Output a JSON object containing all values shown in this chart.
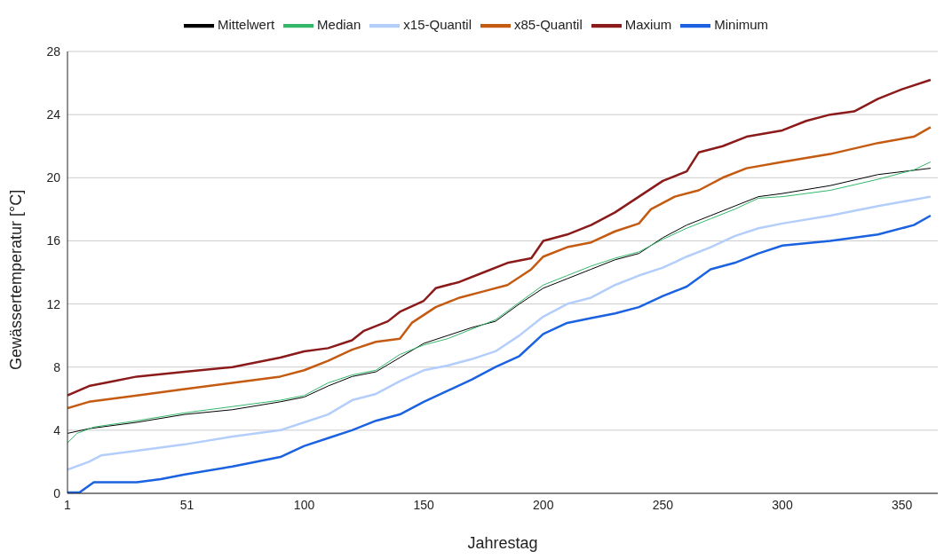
{
  "chart_data": {
    "type": "line",
    "xlabel": "Jahrestag",
    "ylabel": "Gewässertemperatur [°C]",
    "xlim": [
      1,
      365
    ],
    "xticks": [
      1,
      51,
      100,
      150,
      200,
      250,
      300,
      350
    ],
    "ylim": [
      0,
      28
    ],
    "yticks": [
      0,
      4,
      8,
      12,
      16,
      20,
      24,
      28
    ],
    "grid": "y",
    "legend": "top",
    "marker": "none",
    "line_style": "solid",
    "series": [
      {
        "name": "Mittelwert",
        "color": "#000000",
        "x": [
          1,
          10,
          30,
          50,
          70,
          90,
          100,
          110,
          120,
          130,
          140,
          150,
          160,
          170,
          180,
          190,
          200,
          210,
          220,
          230,
          240,
          250,
          260,
          270,
          280,
          290,
          300,
          320,
          340,
          362
        ],
        "values": [
          3.8,
          4.1,
          4.5,
          5.0,
          5.3,
          5.8,
          6.1,
          6.8,
          7.4,
          7.7,
          8.6,
          9.5,
          10.0,
          10.5,
          10.9,
          12.0,
          13.0,
          13.6,
          14.2,
          14.8,
          15.2,
          16.2,
          17.0,
          17.6,
          18.2,
          18.8,
          19.0,
          19.5,
          20.2,
          20.6
        ]
      },
      {
        "name": "Median",
        "color": "#33b86a",
        "x": [
          1,
          5,
          12,
          30,
          50,
          70,
          90,
          100,
          110,
          120,
          130,
          140,
          150,
          160,
          170,
          180,
          190,
          200,
          210,
          220,
          230,
          240,
          250,
          260,
          270,
          280,
          290,
          300,
          320,
          340,
          355,
          362
        ],
        "values": [
          3.2,
          3.8,
          4.2,
          4.6,
          5.1,
          5.5,
          5.9,
          6.2,
          7.0,
          7.5,
          7.8,
          8.8,
          9.4,
          9.8,
          10.4,
          11.0,
          12.1,
          13.2,
          13.8,
          14.4,
          14.9,
          15.3,
          16.1,
          16.8,
          17.4,
          18.0,
          18.7,
          18.8,
          19.2,
          19.9,
          20.5,
          21.0
        ]
      },
      {
        "name": "x15-Quantil",
        "color": "#b3cefb",
        "x": [
          1,
          10,
          15,
          30,
          50,
          70,
          90,
          100,
          110,
          120,
          130,
          140,
          150,
          160,
          170,
          180,
          190,
          200,
          210,
          220,
          230,
          240,
          250,
          260,
          270,
          280,
          290,
          300,
          320,
          340,
          362
        ],
        "values": [
          1.5,
          2.0,
          2.4,
          2.7,
          3.1,
          3.6,
          4.0,
          4.5,
          5.0,
          5.9,
          6.3,
          7.1,
          7.8,
          8.1,
          8.5,
          9.0,
          10.0,
          11.2,
          12.0,
          12.4,
          13.2,
          13.8,
          14.3,
          15.0,
          15.6,
          16.3,
          16.8,
          17.1,
          17.6,
          18.2,
          18.8
        ]
      },
      {
        "name": "x85-Quantil",
        "color": "#c55a11",
        "x": [
          1,
          10,
          30,
          50,
          70,
          90,
          100,
          110,
          120,
          130,
          140,
          145,
          155,
          165,
          175,
          185,
          195,
          200,
          210,
          220,
          230,
          240,
          245,
          255,
          265,
          275,
          285,
          300,
          320,
          340,
          355,
          362
        ],
        "values": [
          5.4,
          5.8,
          6.2,
          6.6,
          7.0,
          7.4,
          7.8,
          8.4,
          9.1,
          9.6,
          9.8,
          10.8,
          11.8,
          12.4,
          12.8,
          13.2,
          14.2,
          15.0,
          15.6,
          15.9,
          16.6,
          17.1,
          18.0,
          18.8,
          19.2,
          20.0,
          20.6,
          21.0,
          21.5,
          22.2,
          22.6,
          23.2
        ]
      },
      {
        "name": "Maxium",
        "color": "#8b1a1a",
        "x": [
          1,
          10,
          20,
          30,
          50,
          70,
          90,
          100,
          110,
          120,
          125,
          135,
          140,
          150,
          155,
          165,
          175,
          185,
          195,
          200,
          210,
          220,
          230,
          240,
          250,
          260,
          265,
          275,
          285,
          300,
          310,
          320,
          330,
          340,
          350,
          362
        ],
        "values": [
          6.2,
          6.8,
          7.1,
          7.4,
          7.7,
          8.0,
          8.6,
          9.0,
          9.2,
          9.7,
          10.3,
          10.9,
          11.5,
          12.2,
          13.0,
          13.4,
          14.0,
          14.6,
          14.9,
          16.0,
          16.4,
          17.0,
          17.8,
          18.8,
          19.8,
          20.4,
          21.6,
          22.0,
          22.6,
          23.0,
          23.6,
          24.0,
          24.2,
          25.0,
          25.6,
          26.2
        ]
      },
      {
        "name": "Minimum",
        "color": "#1a62e0",
        "x": [
          1,
          6,
          12,
          30,
          40,
          50,
          70,
          90,
          100,
          110,
          120,
          130,
          140,
          150,
          160,
          170,
          180,
          190,
          200,
          210,
          220,
          230,
          240,
          250,
          260,
          270,
          280,
          290,
          300,
          320,
          340,
          355,
          362
        ],
        "values": [
          0.05,
          0.05,
          0.7,
          0.7,
          0.9,
          1.2,
          1.7,
          2.3,
          3.0,
          3.5,
          4.0,
          4.6,
          5.0,
          5.8,
          6.5,
          7.2,
          8.0,
          8.7,
          10.1,
          10.8,
          11.1,
          11.4,
          11.8,
          12.5,
          13.1,
          14.2,
          14.6,
          15.2,
          15.7,
          16.0,
          16.4,
          17.0,
          17.6
        ]
      }
    ]
  }
}
